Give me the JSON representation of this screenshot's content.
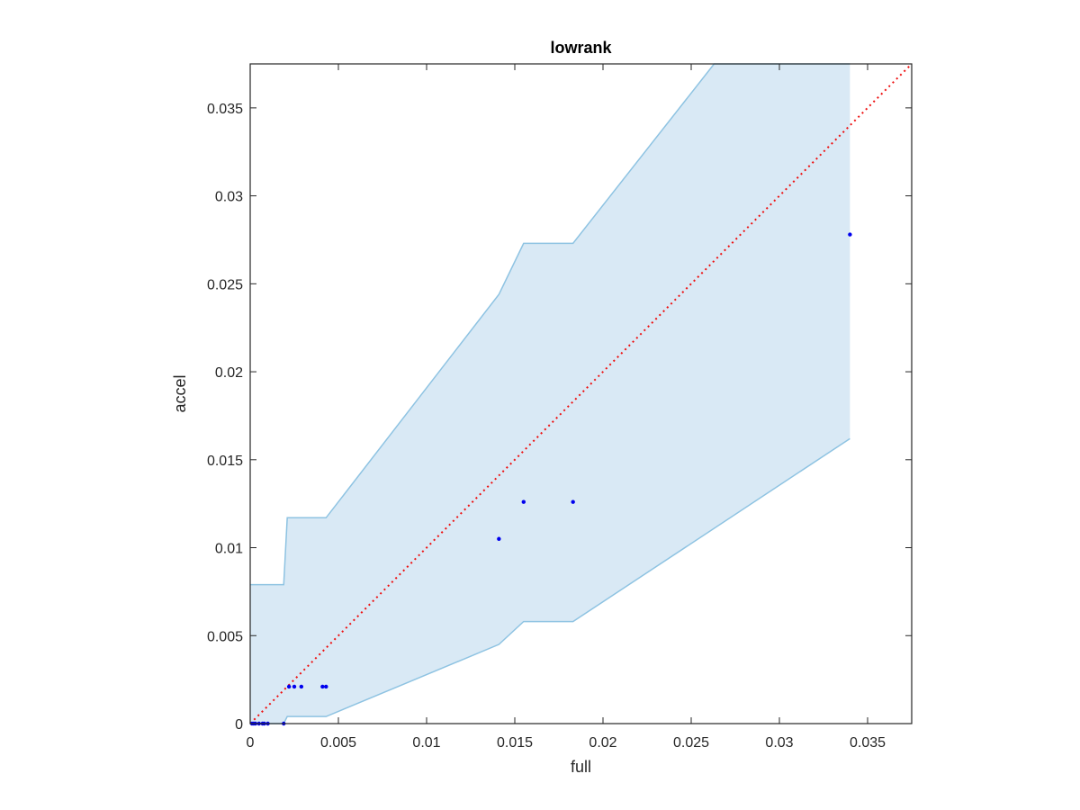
{
  "chart_data": {
    "type": "scatter",
    "title": "lowrank",
    "xlabel": "full",
    "ylabel": "accel",
    "xlim": [
      0,
      0.0375
    ],
    "ylim": [
      0,
      0.0375
    ],
    "xticks": [
      0,
      0.005,
      0.01,
      0.015,
      0.02,
      0.025,
      0.03,
      0.035
    ],
    "xtick_labels": [
      "0",
      "0.005",
      "0.01",
      "0.015",
      "0.02",
      "0.025",
      "0.03",
      "0.035"
    ],
    "yticks": [
      0,
      0.005,
      0.01,
      0.015,
      0.02,
      0.025,
      0.03,
      0.035
    ],
    "ytick_labels": [
      "0",
      "0.005",
      "0.01",
      "0.015",
      "0.02",
      "0.025",
      "0.03",
      "0.035"
    ],
    "grid": false,
    "points": [
      {
        "x": 0.0001,
        "y": 0.0
      },
      {
        "x": 0.0002,
        "y": 0.0
      },
      {
        "x": 0.0003,
        "y": 0.0
      },
      {
        "x": 0.0005,
        "y": 0.0
      },
      {
        "x": 0.0007,
        "y": 0.0
      },
      {
        "x": 0.0008,
        "y": 0.0
      },
      {
        "x": 0.001,
        "y": 0.0
      },
      {
        "x": 0.0019,
        "y": 0.0
      },
      {
        "x": 0.0022,
        "y": 0.0021
      },
      {
        "x": 0.0025,
        "y": 0.0021
      },
      {
        "x": 0.0029,
        "y": 0.0021
      },
      {
        "x": 0.0041,
        "y": 0.0021
      },
      {
        "x": 0.0043,
        "y": 0.0021
      },
      {
        "x": 0.0141,
        "y": 0.0105
      },
      {
        "x": 0.0155,
        "y": 0.0126
      },
      {
        "x": 0.0183,
        "y": 0.0126
      },
      {
        "x": 0.034,
        "y": 0.0278
      }
    ],
    "band_upper": [
      {
        "x": 0.0,
        "y": 0.0079
      },
      {
        "x": 0.0019,
        "y": 0.0079
      },
      {
        "x": 0.0021,
        "y": 0.0117
      },
      {
        "x": 0.0043,
        "y": 0.0117
      },
      {
        "x": 0.0141,
        "y": 0.0244
      },
      {
        "x": 0.0155,
        "y": 0.0273
      },
      {
        "x": 0.0183,
        "y": 0.0273
      },
      {
        "x": 0.0263,
        "y": 0.0375
      },
      {
        "x": 0.034,
        "y": 0.0375
      }
    ],
    "band_lower": [
      {
        "x": 0.0,
        "y": 0.0
      },
      {
        "x": 0.0019,
        "y": 0.0
      },
      {
        "x": 0.0021,
        "y": 0.0004
      },
      {
        "x": 0.0043,
        "y": 0.0004
      },
      {
        "x": 0.0141,
        "y": 0.0045
      },
      {
        "x": 0.0155,
        "y": 0.0058
      },
      {
        "x": 0.0183,
        "y": 0.0058
      },
      {
        "x": 0.034,
        "y": 0.0162
      }
    ],
    "reference_line": {
      "from": [
        0,
        0
      ],
      "to": [
        0.0375,
        0.0375
      ],
      "style": "dotted"
    },
    "colors": {
      "band_fill": "#d9e9f5",
      "band_edge": "#8ec3e2",
      "points": "#0000ee",
      "reference": "#ee1111",
      "axes": "#262626"
    }
  }
}
